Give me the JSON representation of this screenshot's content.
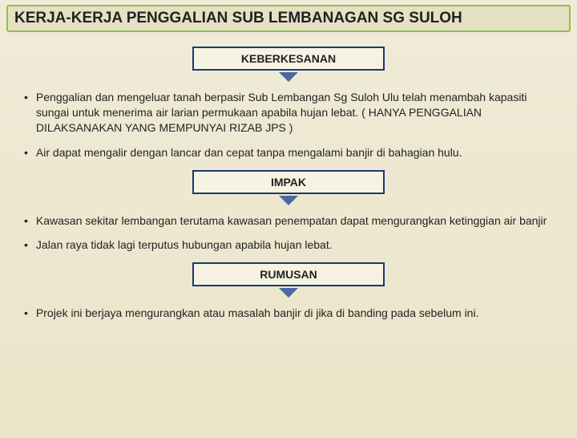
{
  "title": "KERJA-KERJA PENGGALIAN  SUB LEMBANAGAN SG SULOH",
  "sections": {
    "keberkesanan": {
      "label": "KEBERKESANAN",
      "bullets": [
        "Penggalian  dan mengeluar tanah berpasir  Sub Lembangan Sg Suloh Ulu  telah menambah kapasiti  sungai untuk menerima air larian   permukaan apabila hujan lebat. ( HANYA PENGGALIAN DILAKSANAKAN YANG MEMPUNYAI RIZAB JPS  )",
        "Air dapat mengalir dengan lancar dan cepat tanpa mengalami banjir di bahagian hulu."
      ]
    },
    "impak": {
      "label": "IMPAK",
      "bullets": [
        "Kawasan sekitar lembangan  terutama kawasan penempatan  dapat mengurangkan ketinggian air banjir",
        "Jalan raya tidak lagi terputus hubungan apabila hujan lebat."
      ]
    },
    "rumusan": {
      "label": "RUMUSAN",
      "bullets": [
        "Projek ini berjaya  mengurangkan  atau  masalah banjir di jika di banding pada sebelum ini."
      ]
    }
  },
  "colors": {
    "title_border": "#8bc34a",
    "box_border": "#1a3a6e",
    "arrow": "#4a6a9e",
    "bg_top": "#f0ebd8",
    "bg_bottom": "#ebe4c8"
  }
}
